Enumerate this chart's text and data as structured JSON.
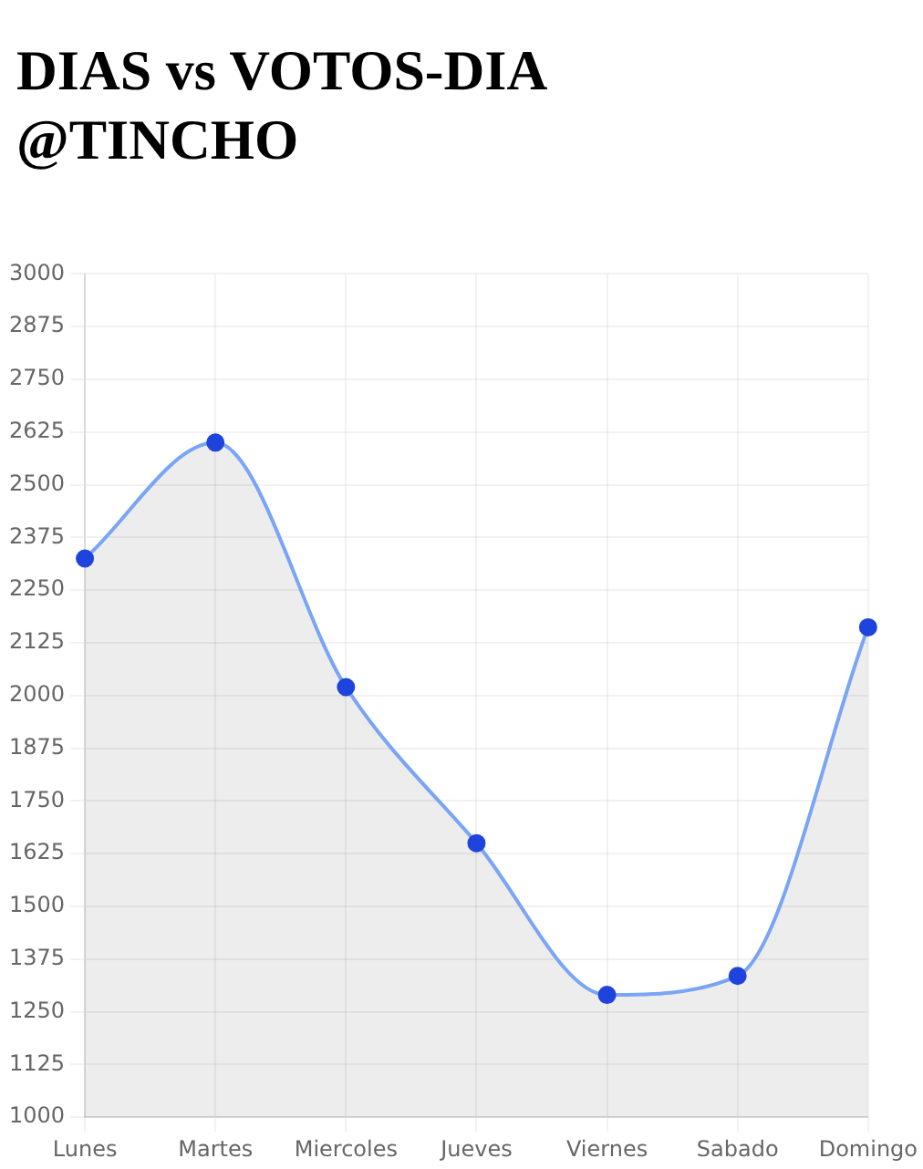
{
  "chart_data": {
    "type": "area",
    "title": "DIAS vs VOTOS-DIA @TINCHO",
    "categories": [
      "Lunes",
      "Martes",
      "Miercoles",
      "Jueves",
      "Viernes",
      "Sabado",
      "Domingo"
    ],
    "series": [
      {
        "color": "#7aa5f5",
        "colors": [
          "#1f44dd",
          "#1f44dd",
          "#1f44dd",
          "#1f44dd",
          "#1f44dd",
          "#1f44dd",
          "#1f44dd"
        ],
        "values": [
          2325,
          2600,
          2020,
          1650,
          1290,
          1335,
          2162
        ]
      }
    ],
    "ylim": [
      1000,
      3000
    ],
    "yticks": [
      1000,
      1125,
      1250,
      1375,
      1500,
      1625,
      1750,
      1875,
      2000,
      2125,
      2250,
      2375,
      2500,
      2625,
      2750,
      2875,
      3000
    ],
    "grid": true,
    "marker": "circle",
    "legend": false
  }
}
